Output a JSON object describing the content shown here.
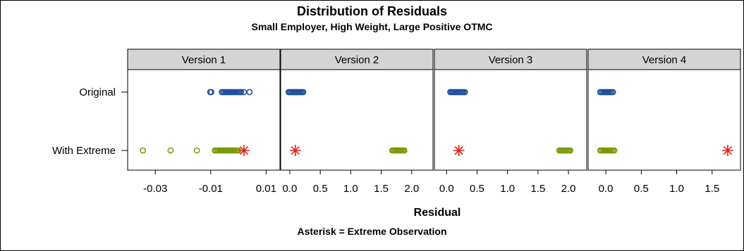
{
  "title": "Distribution of Residuals",
  "subtitle": "Small Employer, High Weight, Large Positive OTMC",
  "xlabel": "Residual",
  "footnote": "Asterisk = Extreme Observation",
  "colors": {
    "original": "#1f4e9c",
    "extreme_rows": "#7a9a01",
    "extreme_obs": "#e0201b",
    "header_bg": "#d4d4d4"
  },
  "chart_data": {
    "type": "scatter",
    "rows": [
      "Original",
      "With Extreme"
    ],
    "panels": [
      {
        "label": "Version 1",
        "xlim": [
          -0.04,
          0.015
        ],
        "ticks": [
          -0.03,
          -0.01,
          0.01
        ],
        "tick_labels": [
          "-0.03",
          "-0.01",
          "0.01"
        ],
        "original": [
          -0.0102,
          -0.0098,
          -0.006,
          -0.0055,
          -0.005,
          -0.0045,
          -0.004,
          -0.0035,
          -0.003,
          -0.0025,
          -0.002,
          -0.0015,
          -0.001,
          -0.0005,
          0.0,
          0.0005,
          0.001,
          0.002,
          0.004
        ],
        "with_extreme": [
          -0.0345,
          -0.0245,
          -0.015,
          -0.0085,
          -0.008,
          -0.0075,
          -0.007,
          -0.0065,
          -0.006,
          -0.0055,
          -0.005,
          -0.0045,
          -0.004,
          -0.0035,
          -0.003,
          -0.0025,
          -0.002,
          -0.0015,
          -0.001,
          -0.0005,
          0.0
        ],
        "extreme": 0.002
      },
      {
        "label": "Version 2",
        "xlim": [
          -0.15,
          2.35
        ],
        "ticks": [
          0,
          0.5,
          1.0,
          1.5,
          2.0
        ],
        "tick_labels": [
          "0.0",
          "0.5",
          "1.0",
          "1.5",
          "2.0"
        ],
        "original": [
          -0.02,
          0.0,
          0.02,
          0.04,
          0.06,
          0.08,
          0.1,
          0.12,
          0.14,
          0.16,
          0.18,
          0.2,
          0.22
        ],
        "with_extreme": [
          1.68,
          1.7,
          1.72,
          1.74,
          1.76,
          1.78,
          1.8,
          1.82,
          1.84,
          1.86,
          1.88
        ],
        "extreme": 0.09
      },
      {
        "label": "Version 3",
        "xlim": [
          -0.2,
          2.3
        ],
        "ticks": [
          0,
          0.5,
          1.0,
          1.5,
          2.0
        ],
        "tick_labels": [
          "0.0",
          "0.5",
          "1.0",
          "1.5",
          "2.0"
        ],
        "original": [
          0.06,
          0.08,
          0.1,
          0.12,
          0.14,
          0.16,
          0.18,
          0.2,
          0.22,
          0.24,
          0.26,
          0.28,
          0.3
        ],
        "with_extreme": [
          1.85,
          1.87,
          1.89,
          1.91,
          1.93,
          1.95,
          1.97,
          1.99,
          2.01,
          2.03
        ],
        "extreme": 0.2
      },
      {
        "label": "Version 4",
        "xlim": [
          -0.25,
          1.9
        ],
        "ticks": [
          0,
          0.5,
          1.0,
          1.5
        ],
        "tick_labels": [
          "0.0",
          "0.5",
          "1.0",
          "1.5"
        ],
        "original": [
          -0.08,
          -0.06,
          -0.04,
          -0.02,
          0.0,
          0.02,
          0.04,
          0.06,
          0.08,
          0.1
        ],
        "with_extreme": [
          -0.08,
          -0.06,
          -0.04,
          -0.02,
          0.0,
          0.02,
          0.04,
          0.06,
          0.08,
          0.1,
          0.12
        ],
        "extreme": 1.72
      }
    ]
  }
}
